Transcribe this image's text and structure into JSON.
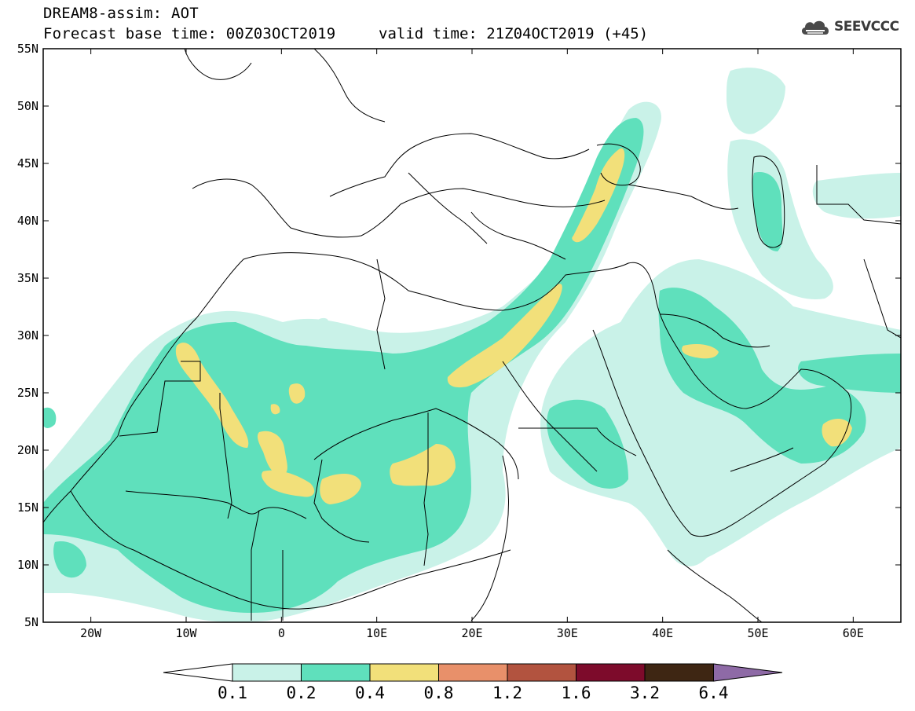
{
  "header": {
    "title": "DREAM8-assim: AOT",
    "base_time": "Forecast base time: 00Z03OCT2019",
    "valid_time": "valid time: 21Z04OCT2019 (+45)"
  },
  "logo": {
    "text": "SEEVCCC",
    "icon": "cloud-icon"
  },
  "map": {
    "lon_range": [
      -25,
      65
    ],
    "lat_range": [
      5,
      55
    ],
    "lon_ticks": [
      {
        "value": -20,
        "label": "20W"
      },
      {
        "value": -10,
        "label": "10W"
      },
      {
        "value": 0,
        "label": "0"
      },
      {
        "value": 10,
        "label": "10E"
      },
      {
        "value": 20,
        "label": "20E"
      },
      {
        "value": 30,
        "label": "30E"
      },
      {
        "value": 40,
        "label": "40E"
      },
      {
        "value": 50,
        "label": "50E"
      },
      {
        "value": 60,
        "label": "60E"
      }
    ],
    "lat_ticks": [
      {
        "value": 55,
        "label": "55N"
      },
      {
        "value": 50,
        "label": "50N"
      },
      {
        "value": 45,
        "label": "45N"
      },
      {
        "value": 40,
        "label": "40N"
      },
      {
        "value": 35,
        "label": "35N"
      },
      {
        "value": 30,
        "label": "30N"
      },
      {
        "value": 25,
        "label": "25N"
      },
      {
        "value": 20,
        "label": "20N"
      },
      {
        "value": 15,
        "label": "15N"
      },
      {
        "value": 10,
        "label": "10N"
      },
      {
        "value": 5,
        "label": "5N"
      }
    ]
  },
  "colorbar": {
    "labels": [
      "0.1",
      "0.2",
      "0.4",
      "0.8",
      "1.2",
      "1.6",
      "3.2",
      "6.4"
    ],
    "colors": {
      "under": "#ffffff",
      "bins": [
        "#c9f2e8",
        "#5fe0bc",
        "#f2e07a",
        "#e8906a",
        "#b2533f",
        "#7d0b2b",
        "#3e2613"
      ],
      "over": "#8e6aa6"
    }
  }
}
